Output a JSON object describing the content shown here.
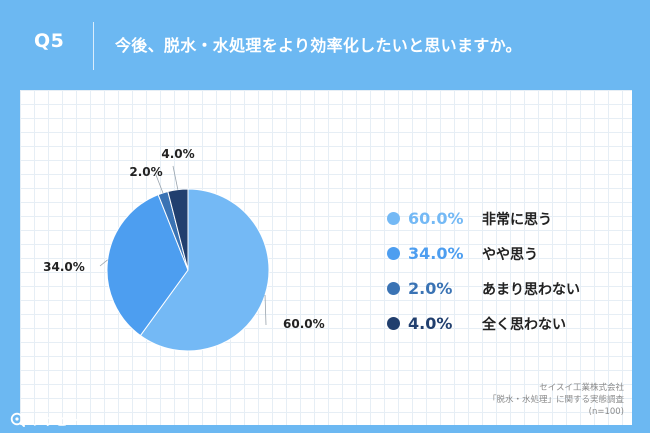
{
  "header": {
    "question_label": "Q5",
    "question_text": "今後、脱水・水処理をより効率化したいと思いますか。"
  },
  "chart_data": {
    "type": "pie",
    "categories": [
      "非常に思う",
      "やや思う",
      "あまり思わない",
      "全く思わない"
    ],
    "values": [
      60.0,
      34.0,
      2.0,
      4.0
    ],
    "value_labels": [
      "60.0%",
      "34.0%",
      "2.0%",
      "4.0%"
    ],
    "colors": [
      "#74b9f5",
      "#4d9ef0",
      "#3a73b4",
      "#213f6e"
    ],
    "legend_position": "right",
    "start_angle": "12 o'clock, clockwise"
  },
  "source": {
    "line1": "セイスイ工業株式会社",
    "line2": "「脱水・水処理」に関する実態調査",
    "line3": "(n=100)"
  },
  "brand": {
    "name": "リサピー",
    "icon": "risapi-logo-icon"
  }
}
